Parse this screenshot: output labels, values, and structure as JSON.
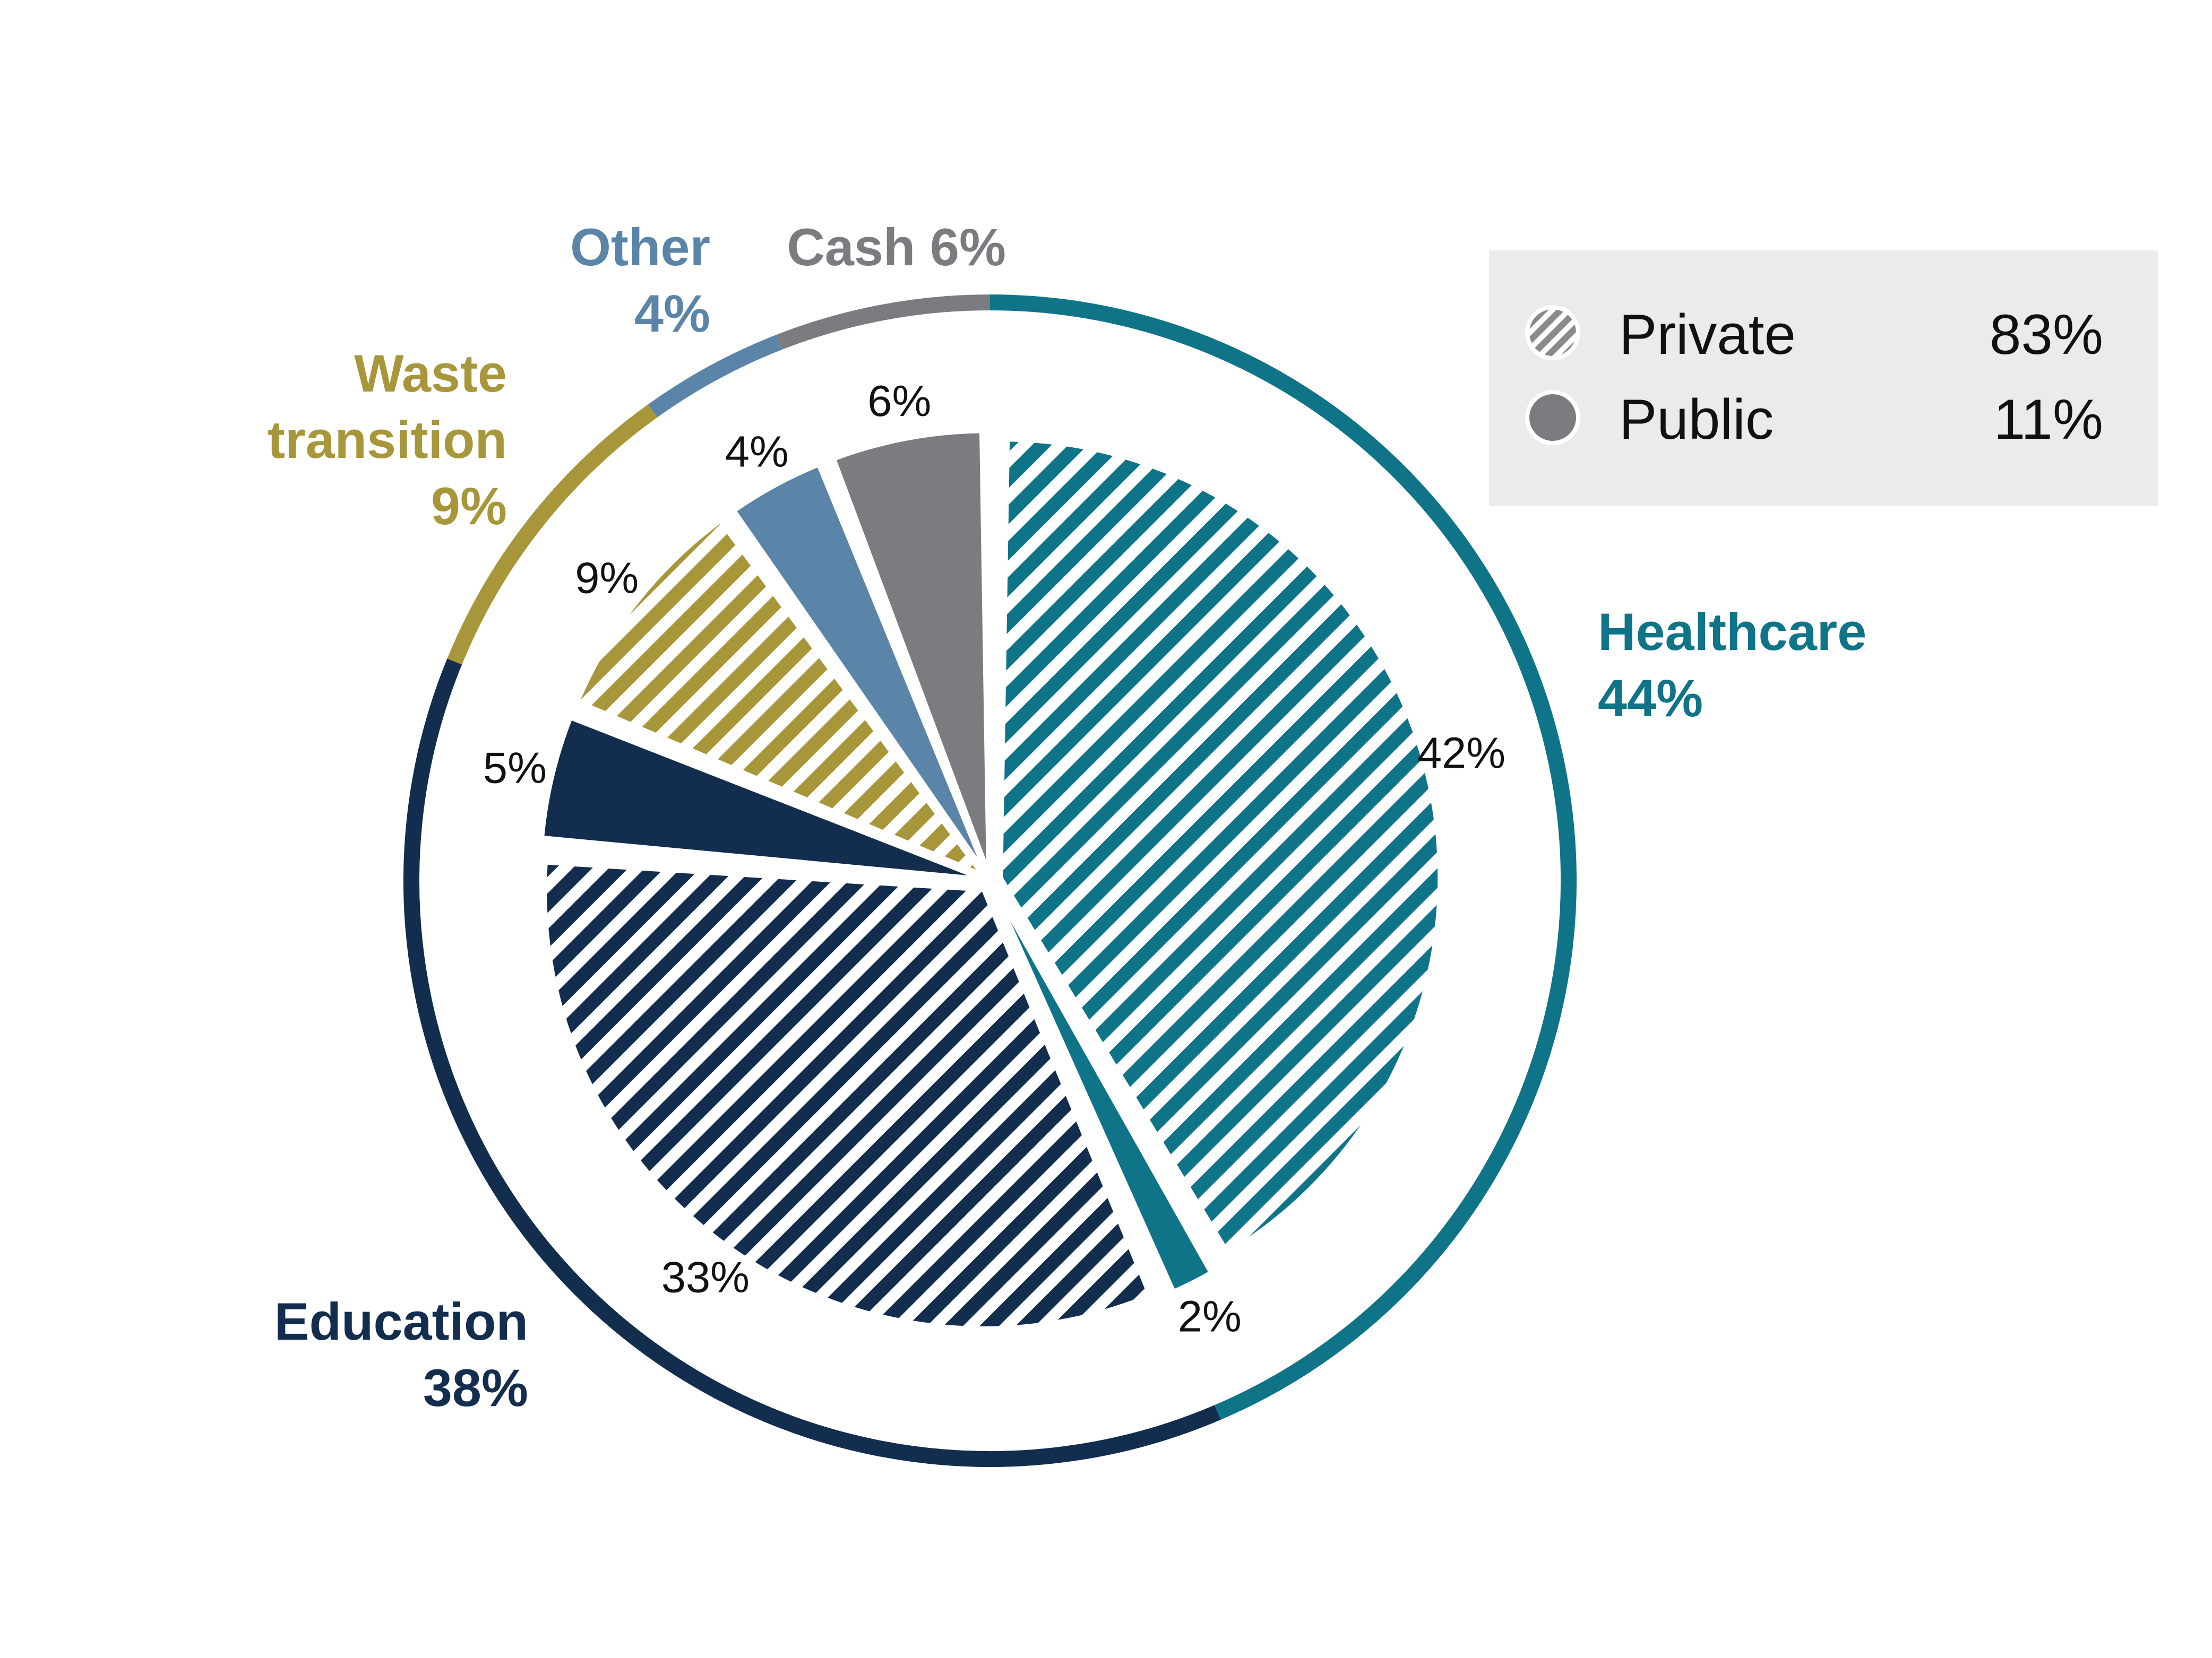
{
  "chart_data": {
    "type": "pie",
    "slices": [
      {
        "group": "Healthcare",
        "kind": "Private",
        "value": 42,
        "label": "42%",
        "color": "#0f7488"
      },
      {
        "group": "Healthcare",
        "kind": "Public",
        "value": 2,
        "label": "2%",
        "color": "#0f7488"
      },
      {
        "group": "Education",
        "kind": "Private",
        "value": 33,
        "label": "33%",
        "color": "#132d4f"
      },
      {
        "group": "Education",
        "kind": "Public",
        "value": 5,
        "label": "5%",
        "color": "#132d4f"
      },
      {
        "group": "Waste transition",
        "kind": "Private",
        "value": 9,
        "label": "9%",
        "color": "#a8963b"
      },
      {
        "group": "Other",
        "kind": "Public",
        "value": 4,
        "label": "4%",
        "color": "#5a84a8"
      },
      {
        "group": "Cash",
        "kind": "Public",
        "value": 6,
        "label": "6%",
        "color": "#7b7c80"
      }
    ],
    "outer_ring": [
      {
        "name": "Healthcare",
        "value": 44,
        "color": "#0f7488"
      },
      {
        "name": "Education",
        "value": 38,
        "color": "#132d4f"
      },
      {
        "name": "Waste transition",
        "value": 9,
        "color": "#a8963b"
      },
      {
        "name": "Other",
        "value": 4,
        "color": "#5a84a8"
      },
      {
        "name": "Cash",
        "value": 6,
        "color": "#7b7c80"
      }
    ],
    "segment_labels": [
      {
        "lines": [
          "Healthcare",
          "44%"
        ],
        "color": "#0f7488"
      },
      {
        "lines": [
          "Education",
          "38%"
        ],
        "color": "#132d4f"
      },
      {
        "lines": [
          "Waste",
          "transition",
          "9%"
        ],
        "color": "#a8963b"
      },
      {
        "lines": [
          "Other",
          "4%"
        ],
        "color": "#5a84a8"
      },
      {
        "lines": [
          "Cash 6%"
        ],
        "color": "#7b7c80"
      }
    ],
    "legend": {
      "placement": "top-right",
      "background": "#ebebeb",
      "items": [
        {
          "name": "Private",
          "value": "83%",
          "pattern": "hatched"
        },
        {
          "name": "Public",
          "value": "11%",
          "pattern": "solid"
        }
      ]
    }
  }
}
